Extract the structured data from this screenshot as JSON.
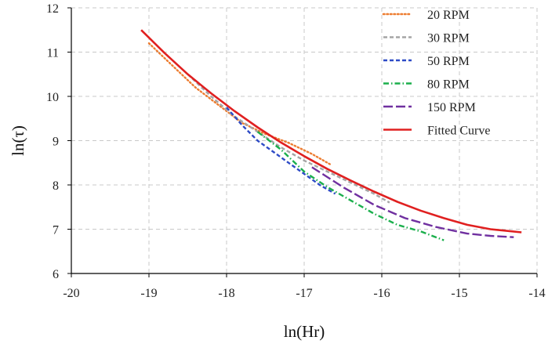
{
  "chart_data": {
    "type": "line",
    "title": "",
    "xlabel": "ln(Hr)",
    "ylabel": "ln(τ)",
    "xlim": [
      -20,
      -14
    ],
    "ylim": [
      6,
      12
    ],
    "x_ticks": [
      -20,
      -19,
      -18,
      -17,
      -16,
      -15,
      -14
    ],
    "y_ticks": [
      6,
      7,
      8,
      9,
      10,
      11,
      12
    ],
    "x_tick_labels": [
      "-20",
      "-19",
      "-18",
      "-17",
      "-16",
      "-15",
      "-14"
    ],
    "y_tick_labels": [
      "6",
      "7",
      "8",
      "9",
      "10",
      "11",
      "12"
    ],
    "grid": true,
    "legend_position": "top-right",
    "series": [
      {
        "name": "20 RPM",
        "color": "#ED7D31",
        "style": "dotted",
        "x": [
          -19.0,
          -18.7,
          -18.4,
          -18.1,
          -17.8,
          -17.5,
          -17.2,
          -16.9,
          -16.65
        ],
        "y": [
          11.2,
          10.7,
          10.2,
          9.8,
          9.4,
          9.15,
          8.95,
          8.7,
          8.45
        ]
      },
      {
        "name": "30 RPM",
        "color": "#A5A5A5",
        "style": "dashed",
        "x": [
          -18.5,
          -18.2,
          -17.9,
          -17.6,
          -17.3,
          -17.0,
          -16.7,
          -16.4,
          -16.1,
          -15.9
        ],
        "y": [
          10.5,
          10.0,
          9.55,
          9.2,
          8.85,
          8.55,
          8.3,
          8.05,
          7.8,
          7.6
        ]
      },
      {
        "name": "50 RPM",
        "color": "#2E4BC6",
        "style": "dashed",
        "x": [
          -18.0,
          -17.8,
          -17.6,
          -17.4,
          -17.2,
          -17.0,
          -16.8,
          -16.6
        ],
        "y": [
          9.75,
          9.35,
          9.0,
          8.75,
          8.5,
          8.25,
          8.0,
          7.8
        ]
      },
      {
        "name": "80 RPM",
        "color": "#1BAF4C",
        "style": "dashdot",
        "x": [
          -17.6,
          -17.3,
          -17.0,
          -16.7,
          -16.4,
          -16.1,
          -15.8,
          -15.5,
          -15.2
        ],
        "y": [
          9.2,
          8.8,
          8.3,
          7.95,
          7.65,
          7.35,
          7.1,
          6.95,
          6.75
        ]
      },
      {
        "name": "150 RPM",
        "color": "#7030A0",
        "style": "longdash",
        "x": [
          -16.9,
          -16.5,
          -16.1,
          -15.7,
          -15.3,
          -14.9,
          -14.6,
          -14.3
        ],
        "y": [
          8.4,
          7.95,
          7.55,
          7.25,
          7.05,
          6.9,
          6.85,
          6.82
        ]
      },
      {
        "name": "Fitted Curve",
        "color": "#E02020",
        "style": "solid",
        "x": [
          -19.1,
          -18.8,
          -18.5,
          -18.2,
          -17.9,
          -17.6,
          -17.3,
          -17.0,
          -16.7,
          -16.4,
          -16.1,
          -15.8,
          -15.5,
          -15.2,
          -14.9,
          -14.6,
          -14.2
        ],
        "y": [
          11.5,
          10.98,
          10.5,
          10.07,
          9.67,
          9.3,
          8.96,
          8.65,
          8.36,
          8.1,
          7.85,
          7.62,
          7.42,
          7.25,
          7.1,
          7.0,
          6.93
        ]
      }
    ]
  }
}
